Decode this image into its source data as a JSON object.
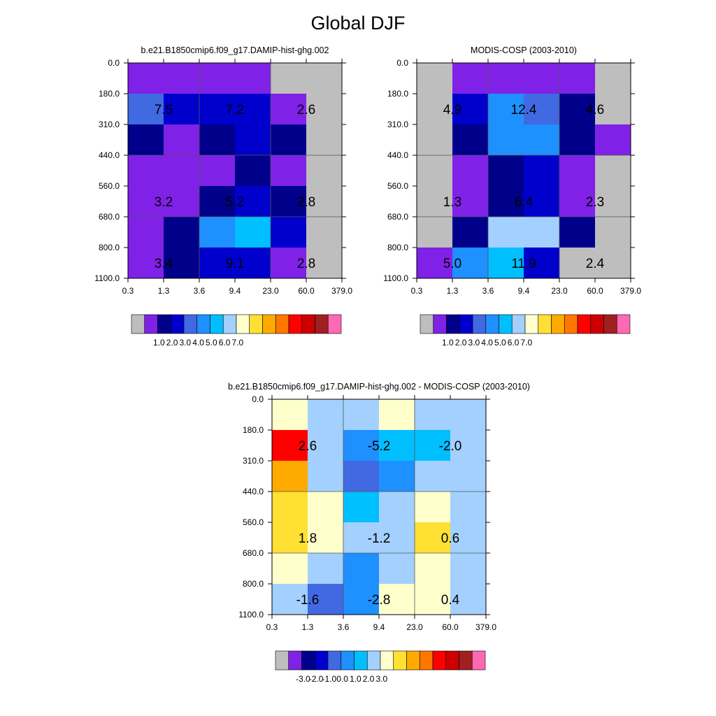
{
  "figure": {
    "title": "Global DJF"
  },
  "chart_data": [
    {
      "type": "heatmap",
      "title": "b.e21.B1850cmip6.f09_g17.DAMIP-hist-ghg.002",
      "x_ticks": [
        "0.3",
        "1.3",
        "3.6",
        "9.4",
        "23.0",
        "60.0",
        "379.0"
      ],
      "y_ticks": [
        "0.0",
        "180.0",
        "310.0",
        "440.0",
        "560.0",
        "680.0",
        "800.0",
        "1100.0"
      ],
      "cell_colors": [
        [
          "#8021e8",
          "#8021e8",
          "#8021e8",
          "#8021e8",
          "#bebebe",
          "#bebebe"
        ],
        [
          "#4169e1",
          "#0000cd",
          "#0000cd",
          "#0000cd",
          "#8021e8",
          "#bebebe"
        ],
        [
          "#00008b",
          "#8021e8",
          "#00008b",
          "#0000cd",
          "#00008b",
          "#bebebe"
        ],
        [
          "#8021e8",
          "#8021e8",
          "#8021e8",
          "#00008b",
          "#8021e8",
          "#bebebe"
        ],
        [
          "#8021e8",
          "#8021e8",
          "#00008b",
          "#0000cd",
          "#00008b",
          "#bebebe"
        ],
        [
          "#8021e8",
          "#00008b",
          "#1e90ff",
          "#00bfff",
          "#0000cd",
          "#bebebe"
        ],
        [
          "#8021e8",
          "#00008b",
          "#0000cd",
          "#0000cd",
          "#8021e8",
          "#bebebe"
        ]
      ],
      "annotations": [
        {
          "row": 1,
          "col": 0,
          "text": "7.5"
        },
        {
          "row": 1,
          "col": 2,
          "text": "7.2"
        },
        {
          "row": 1,
          "col": 4,
          "text": "2.6"
        },
        {
          "row": 4,
          "col": 0,
          "text": "3.2"
        },
        {
          "row": 4,
          "col": 2,
          "text": "5.2"
        },
        {
          "row": 4,
          "col": 4,
          "text": "2.8"
        },
        {
          "row": 6,
          "col": 0,
          "text": "3.4"
        },
        {
          "row": 6,
          "col": 2,
          "text": "9.1"
        },
        {
          "row": 6,
          "col": 4,
          "text": "2.8"
        }
      ],
      "colorbar": {
        "colors": [
          "#bebebe",
          "#8021e8",
          "#00008b",
          "#0000cd",
          "#4169e1",
          "#1e90ff",
          "#00bfff",
          "#a3d0ff",
          "#ffffcc",
          "#ffe033",
          "#ffaa00",
          "#ff7700",
          "#ff0000",
          "#cc0000",
          "#a02020",
          "#ff69b4"
        ],
        "labels": [
          "1.0",
          "2.0",
          "3.0",
          "4.0",
          "5.0",
          "6.0",
          "7.0"
        ],
        "label_boundary_start": 2
      }
    },
    {
      "type": "heatmap",
      "title": "MODIS-COSP (2003-2010)",
      "x_ticks": [
        "0.3",
        "1.3",
        "3.6",
        "9.4",
        "23.0",
        "60.0",
        "379.0"
      ],
      "y_ticks": [
        "0.0",
        "180.0",
        "310.0",
        "440.0",
        "560.0",
        "680.0",
        "800.0",
        "1100.0"
      ],
      "cell_colors": [
        [
          "#bebebe",
          "#8021e8",
          "#8021e8",
          "#8021e8",
          "#8021e8",
          "#bebebe"
        ],
        [
          "#bebebe",
          "#0000cd",
          "#1e90ff",
          "#4169e1",
          "#00008b",
          "#bebebe"
        ],
        [
          "#bebebe",
          "#00008b",
          "#1e90ff",
          "#1e90ff",
          "#00008b",
          "#8021e8"
        ],
        [
          "#bebebe",
          "#8021e8",
          "#00008b",
          "#0000cd",
          "#8021e8",
          "#bebebe"
        ],
        [
          "#bebebe",
          "#8021e8",
          "#00008b",
          "#0000cd",
          "#8021e8",
          "#bebebe"
        ],
        [
          "#bebebe",
          "#00008b",
          "#a3d0ff",
          "#a3d0ff",
          "#00008b",
          "#bebebe"
        ],
        [
          "#8021e8",
          "#1e90ff",
          "#00bfff",
          "#0000cd",
          "#bebebe",
          "#bebebe"
        ]
      ],
      "annotations": [
        {
          "row": 1,
          "col": 0,
          "text": "4.9"
        },
        {
          "row": 1,
          "col": 2,
          "text": "12.4"
        },
        {
          "row": 1,
          "col": 4,
          "text": "4.6"
        },
        {
          "row": 4,
          "col": 0,
          "text": "1.3"
        },
        {
          "row": 4,
          "col": 2,
          "text": "6.4"
        },
        {
          "row": 4,
          "col": 4,
          "text": "2.3"
        },
        {
          "row": 6,
          "col": 0,
          "text": "5.0"
        },
        {
          "row": 6,
          "col": 2,
          "text": "11.9"
        },
        {
          "row": 6,
          "col": 4,
          "text": "2.4"
        }
      ],
      "colorbar": {
        "colors": [
          "#bebebe",
          "#8021e8",
          "#00008b",
          "#0000cd",
          "#4169e1",
          "#1e90ff",
          "#00bfff",
          "#a3d0ff",
          "#ffffcc",
          "#ffe033",
          "#ffaa00",
          "#ff7700",
          "#ff0000",
          "#cc0000",
          "#a02020",
          "#ff69b4"
        ],
        "labels": [
          "1.0",
          "2.0",
          "3.0",
          "4.0",
          "5.0",
          "6.0",
          "7.0"
        ],
        "label_boundary_start": 2
      }
    },
    {
      "type": "heatmap",
      "title": "b.e21.B1850cmip6.f09_g17.DAMIP-hist-ghg.002 - MODIS-COSP (2003-2010)",
      "x_ticks": [
        "0.3",
        "1.3",
        "3.6",
        "9.4",
        "23.0",
        "60.0",
        "379.0"
      ],
      "y_ticks": [
        "0.0",
        "180.0",
        "310.0",
        "440.0",
        "560.0",
        "680.0",
        "800.0",
        "1100.0"
      ],
      "cell_colors": [
        [
          "#ffffcc",
          "#a3d0ff",
          "#a3d0ff",
          "#ffffcc",
          "#a3d0ff",
          "#a3d0ff"
        ],
        [
          "#ff0000",
          "#a3d0ff",
          "#1e90ff",
          "#00bfff",
          "#00bfff",
          "#a3d0ff"
        ],
        [
          "#ffaa00",
          "#a3d0ff",
          "#4169e1",
          "#1e90ff",
          "#a3d0ff",
          "#a3d0ff"
        ],
        [
          "#ffe033",
          "#ffffcc",
          "#00bfff",
          "#a3d0ff",
          "#ffffcc",
          "#a3d0ff"
        ],
        [
          "#ffe033",
          "#ffffcc",
          "#a3d0ff",
          "#a3d0ff",
          "#ffe033",
          "#a3d0ff"
        ],
        [
          "#ffffcc",
          "#a3d0ff",
          "#1e90ff",
          "#a3d0ff",
          "#ffffcc",
          "#a3d0ff"
        ],
        [
          "#a3d0ff",
          "#4169e1",
          "#1e90ff",
          "#ffffcc",
          "#ffffcc",
          "#a3d0ff"
        ]
      ],
      "annotations": [
        {
          "row": 1,
          "col": 0,
          "text": "2.6"
        },
        {
          "row": 1,
          "col": 2,
          "text": "-5.2"
        },
        {
          "row": 1,
          "col": 4,
          "text": "-2.0"
        },
        {
          "row": 4,
          "col": 0,
          "text": "1.8"
        },
        {
          "row": 4,
          "col": 2,
          "text": "-1.2"
        },
        {
          "row": 4,
          "col": 4,
          "text": "0.6"
        },
        {
          "row": 6,
          "col": 0,
          "text": "-1.6"
        },
        {
          "row": 6,
          "col": 2,
          "text": "-2.8"
        },
        {
          "row": 6,
          "col": 4,
          "text": "0.4"
        }
      ],
      "colorbar": {
        "colors": [
          "#bebebe",
          "#8021e8",
          "#00008b",
          "#0000cd",
          "#4169e1",
          "#1e90ff",
          "#00bfff",
          "#a3d0ff",
          "#ffffcc",
          "#ffe033",
          "#ffaa00",
          "#ff7700",
          "#ff0000",
          "#cc0000",
          "#a02020",
          "#ff69b4"
        ],
        "labels": [
          "-3.0",
          "-2.0",
          "-1.0",
          "0.0",
          "1.0",
          "2.0",
          "3.0"
        ],
        "label_boundary_start": 2
      }
    }
  ]
}
